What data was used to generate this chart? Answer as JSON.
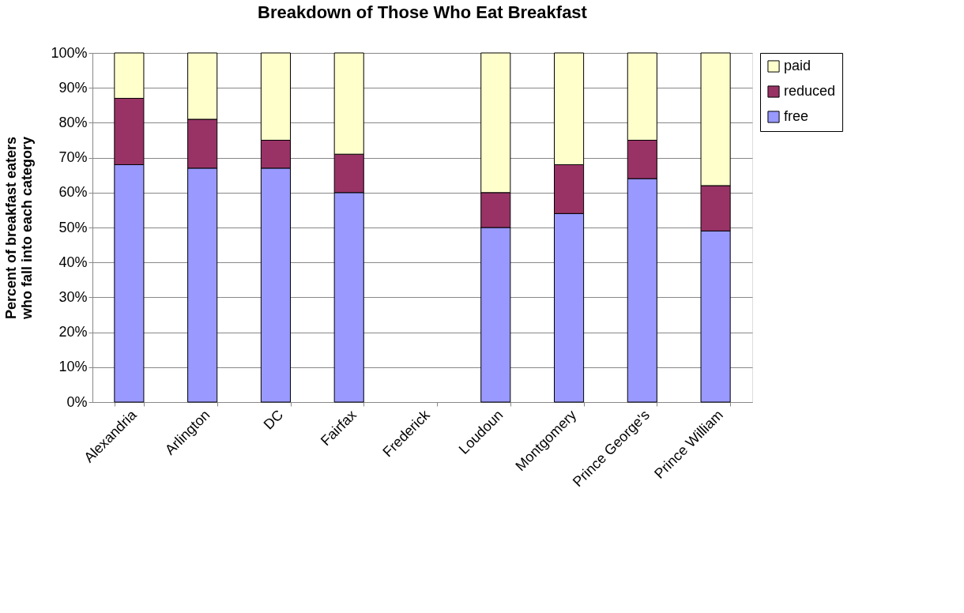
{
  "chart_data": {
    "type": "bar",
    "stacked": true,
    "title": "Breakdown of Those Who Eat Breakfast",
    "ylabel": "Percent of breakfast eaters who fall into each category",
    "categories": [
      "Alexandria",
      "Arlington",
      "DC",
      "Fairfax",
      "Frederick",
      "Loudoun",
      "Montgomery",
      "Prince George's",
      "Prince William"
    ],
    "series": [
      {
        "name": "free",
        "color": "#9999ff",
        "values": [
          68,
          67,
          67,
          60,
          null,
          50,
          54,
          64,
          49
        ]
      },
      {
        "name": "reduced",
        "color": "#993366",
        "values": [
          19,
          14,
          8,
          11,
          null,
          10,
          14,
          11,
          13
        ]
      },
      {
        "name": "paid",
        "color": "#ffffcc",
        "values": [
          13,
          19,
          25,
          29,
          null,
          40,
          32,
          25,
          38
        ]
      }
    ],
    "ylim": [
      0,
      100
    ],
    "yticks": [
      {
        "value": 0,
        "label": "0%"
      },
      {
        "value": 10,
        "label": "10%"
      },
      {
        "value": 20,
        "label": "20%"
      },
      {
        "value": 30,
        "label": "30%"
      },
      {
        "value": 40,
        "label": "40%"
      },
      {
        "value": 50,
        "label": "50%"
      },
      {
        "value": 60,
        "label": "60%"
      },
      {
        "value": 70,
        "label": "70%"
      },
      {
        "value": 80,
        "label": "80%"
      },
      {
        "value": 90,
        "label": "90%"
      },
      {
        "value": 100,
        "label": "100%"
      }
    ],
    "grid": "y",
    "legend": "right"
  }
}
